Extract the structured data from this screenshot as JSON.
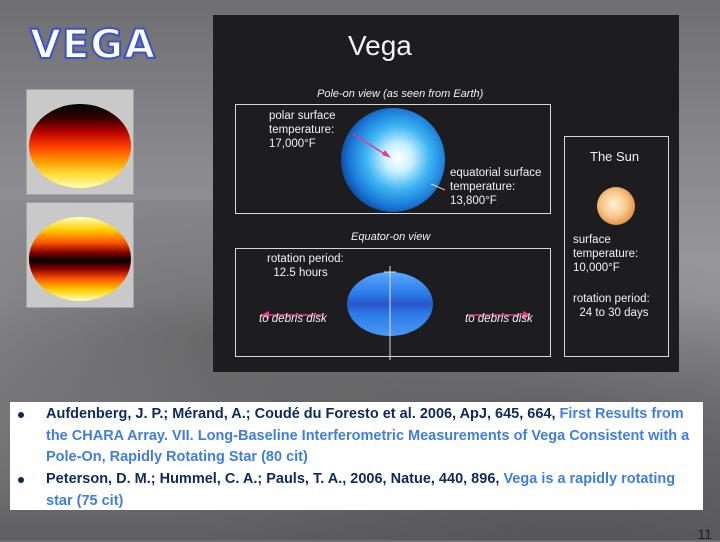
{
  "slide": {
    "title": "VEGA",
    "page_number": "11"
  },
  "figure": {
    "title": "Vega",
    "pole_on_caption": "Pole-on view (as seen from Earth)",
    "polar_label": "polar surface\ntemperature:\n17,000°F",
    "equatorial_label": "equatorial surface\ntemperature:\n13,800°F",
    "equator_on_caption": "Equator-on view",
    "rotation_label": "rotation period:\n  12.5 hours",
    "debris_left": "to debris disk",
    "debris_right": "to debris disk",
    "sun_title": "The Sun",
    "sun_temp_label": "surface\ntemperature:\n10,000°F",
    "sun_rotation_label": "rotation period:\n  24 to 30 days"
  },
  "references": [
    {
      "text": "Aufdenberg, J. P.; Mérand, A.; Coudé du Foresto et al. 2006, ApJ, 645, 664, ",
      "link": "First Results from the CHARA Array. VII. Long-Baseline Interferometric Measurements of Vega Consistent with a Pole-On, Rapidly Rotating Star (80 cit)"
    },
    {
      "text": "Peterson, D. M.; Hummel, C. A.; Pauls, T. A., 2006, Natue, 440, 896, ",
      "link": "Vega is a rapidly rotating star (75 cit)"
    }
  ],
  "colors": {
    "title_outline": "#3b55c8",
    "ref_text": "#0d2a5c",
    "ref_link": "#3f7ee0",
    "figure_bg": "#1d1d1f"
  }
}
